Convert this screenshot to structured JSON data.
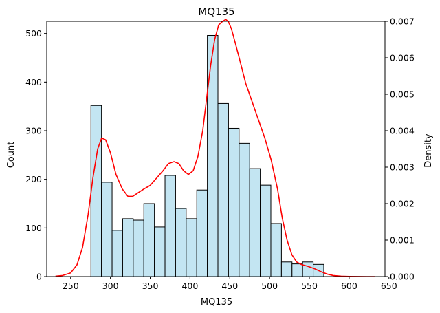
{
  "chart_data": {
    "type": "bar",
    "title": "MQ135",
    "xlabel": "MQ135",
    "ylabel": "Count",
    "y2label": "Density",
    "xlim": [
      220,
      645
    ],
    "ylim": [
      0,
      525
    ],
    "y2lim": [
      0,
      0.007
    ],
    "grid": false,
    "colors": {
      "bar_fill": "#c3e5f2",
      "bar_edge": "#000000",
      "kde": "#ff0000"
    },
    "x_ticks": [
      250,
      300,
      350,
      400,
      450,
      500,
      550,
      600,
      650
    ],
    "y_ticks": [
      0,
      100,
      200,
      300,
      400,
      500
    ],
    "y2_ticks": [
      "0.000",
      "0.001",
      "0.002",
      "0.003",
      "0.004",
      "0.005",
      "0.006",
      "0.007"
    ],
    "bins": [
      {
        "start": 275.5,
        "end": 288.8,
        "count": 352
      },
      {
        "start": 288.8,
        "end": 302.1,
        "count": 194
      },
      {
        "start": 302.1,
        "end": 315.4,
        "count": 95
      },
      {
        "start": 315.4,
        "end": 328.7,
        "count": 119
      },
      {
        "start": 328.7,
        "end": 342.0,
        "count": 116
      },
      {
        "start": 342.0,
        "end": 355.3,
        "count": 150
      },
      {
        "start": 355.3,
        "end": 368.6,
        "count": 102
      },
      {
        "start": 368.6,
        "end": 381.9,
        "count": 208
      },
      {
        "start": 381.9,
        "end": 395.2,
        "count": 140
      },
      {
        "start": 395.2,
        "end": 408.5,
        "count": 119
      },
      {
        "start": 408.5,
        "end": 421.8,
        "count": 178
      },
      {
        "start": 421.8,
        "end": 435.1,
        "count": 496
      },
      {
        "start": 435.1,
        "end": 448.4,
        "count": 356
      },
      {
        "start": 448.4,
        "end": 461.7,
        "count": 305
      },
      {
        "start": 461.7,
        "end": 475.0,
        "count": 274
      },
      {
        "start": 475.0,
        "end": 488.3,
        "count": 222
      },
      {
        "start": 488.3,
        "end": 501.6,
        "count": 188
      },
      {
        "start": 501.6,
        "end": 514.9,
        "count": 109
      },
      {
        "start": 514.9,
        "end": 528.2,
        "count": 30
      },
      {
        "start": 528.2,
        "end": 541.5,
        "count": 26
      },
      {
        "start": 541.5,
        "end": 554.8,
        "count": 30
      },
      {
        "start": 554.8,
        "end": 568.1,
        "count": 25
      }
    ],
    "kde": {
      "x": [
        231,
        240,
        250,
        258,
        265,
        272,
        278,
        284,
        289,
        294,
        300,
        307,
        315,
        322,
        328,
        335,
        342,
        350,
        358,
        366,
        373,
        380,
        386,
        392,
        398,
        404,
        410,
        416,
        421,
        426,
        431,
        436,
        441,
        445,
        448,
        452,
        457,
        463,
        470,
        478,
        486,
        494,
        502,
        510,
        516,
        522,
        528,
        534,
        540,
        548,
        556,
        564,
        572,
        580,
        590,
        600,
        612,
        622,
        632
      ],
      "y": [
        1e-05,
        3e-05,
        0.0001,
        0.00032,
        0.0008,
        0.0017,
        0.0027,
        0.0035,
        0.0038,
        0.00375,
        0.0034,
        0.0028,
        0.0024,
        0.0022,
        0.0022,
        0.0023,
        0.0024,
        0.0025,
        0.0027,
        0.0029,
        0.0031,
        0.00315,
        0.0031,
        0.0029,
        0.0028,
        0.0029,
        0.0033,
        0.004,
        0.0049,
        0.0058,
        0.0065,
        0.0069,
        0.007,
        0.00705,
        0.007,
        0.0068,
        0.0064,
        0.0059,
        0.0053,
        0.0048,
        0.0043,
        0.0038,
        0.0032,
        0.0024,
        0.0016,
        0.001,
        0.0006,
        0.0004,
        0.00033,
        0.00028,
        0.00022,
        0.00014,
        7e-05,
        3e-05,
        1e-05,
        3e-06,
        1e-06,
        0.0,
        0.0
      ]
    }
  }
}
